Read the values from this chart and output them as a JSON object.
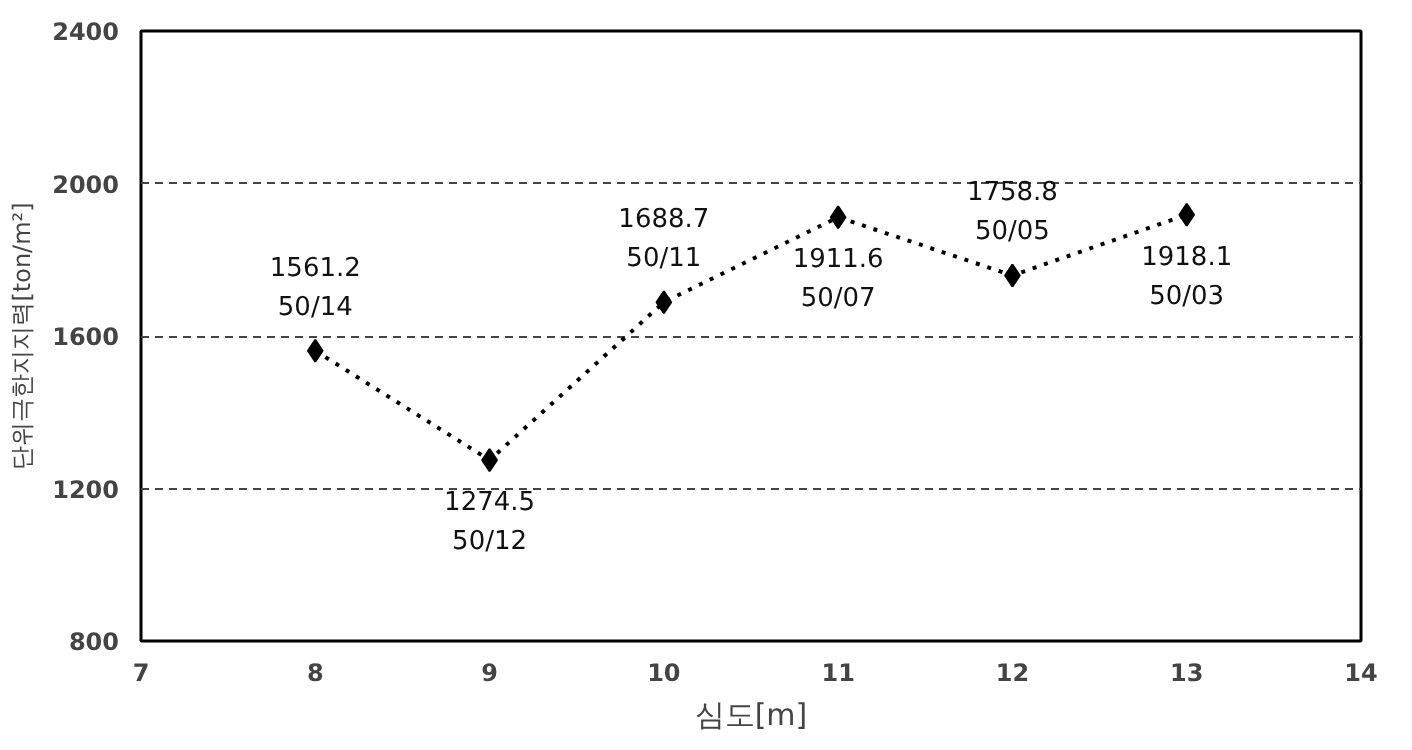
{
  "chart_data": {
    "type": "line",
    "xlabel": "심도[m]",
    "ylabel": "단위극한지지력[ton/m²]",
    "x": [
      8,
      9,
      10,
      11,
      12,
      13
    ],
    "series": [
      {
        "color": "#000000",
        "values": [
          1561.2,
          1274.5,
          1688.7,
          1911.6,
          1758.8,
          1918.1
        ],
        "value_labels": [
          "1561.2\n50/14",
          "1274.5\n50/12",
          "1688.7\n50/11",
          "1911.6\n50/07",
          "1758.8\n50/05",
          "1918.1\n50/03"
        ]
      }
    ],
    "xlim": [
      7,
      14
    ],
    "xticks": [
      7,
      8,
      9,
      10,
      11,
      12,
      13,
      14
    ],
    "ylim": [
      800,
      2400
    ],
    "yticks": [
      800,
      1200,
      1600,
      2000,
      2400
    ],
    "grid": "y",
    "marker": "diamond",
    "line_style": "dotted"
  }
}
